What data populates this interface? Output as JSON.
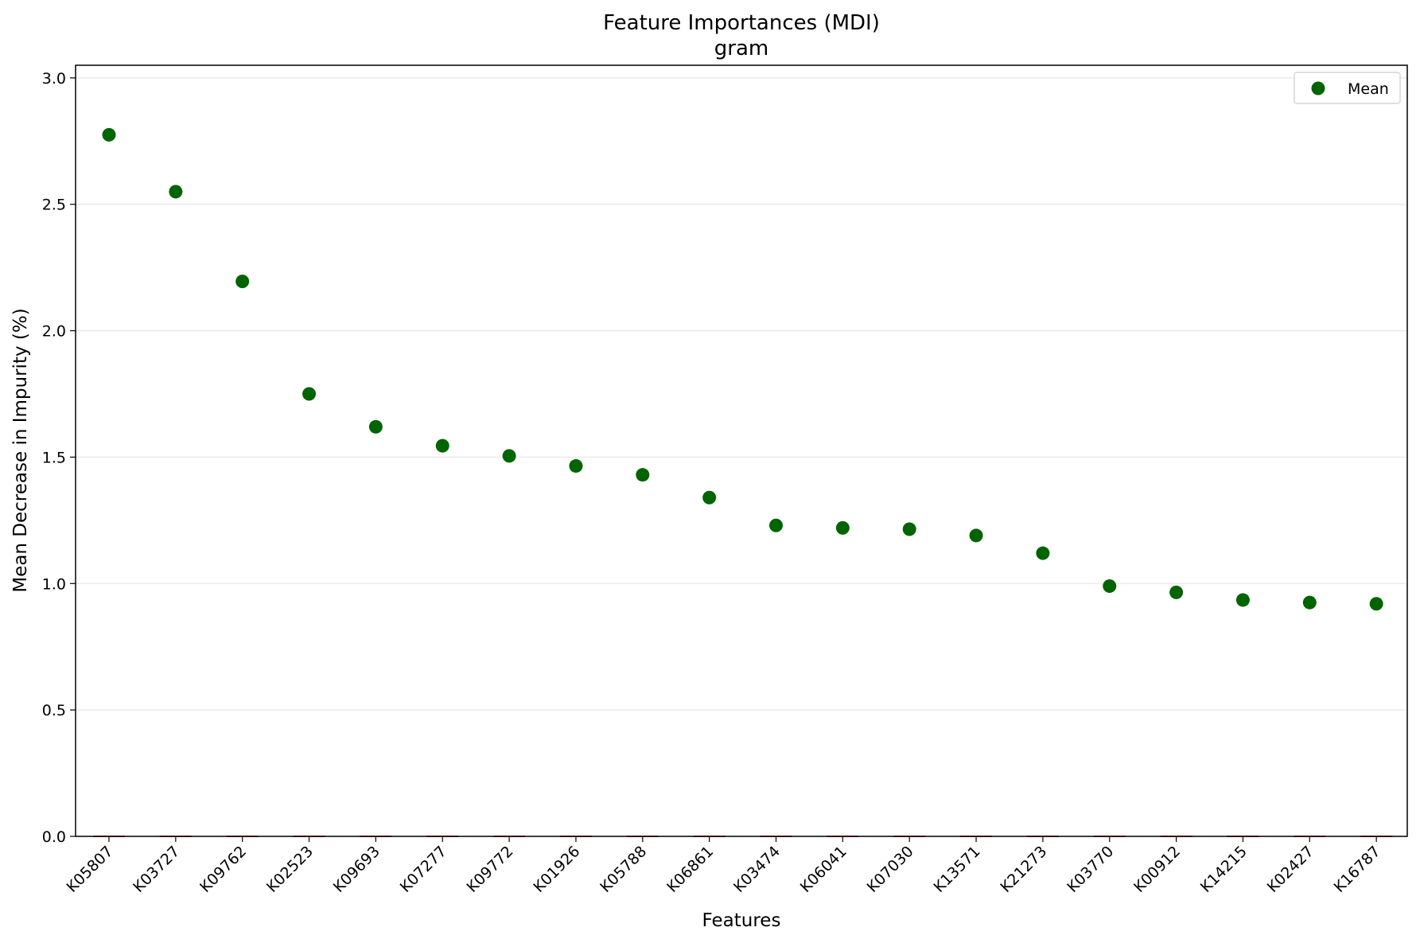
{
  "chart_data": {
    "type": "scatter",
    "title": "Feature Importances (MDI)",
    "subtitle": "gram",
    "xlabel": "Features",
    "ylabel": "Mean Decrease in Impurity (%)",
    "ylim": [
      0,
      3.05
    ],
    "yticks": [
      "0.0",
      "0.5",
      "1.0",
      "1.5",
      "2.0",
      "2.5",
      "3.0"
    ],
    "grid": "y",
    "legend_position": "top-right",
    "categories": [
      "K05807",
      "K03727",
      "K09762",
      "K02523",
      "K09693",
      "K07277",
      "K09772",
      "K01926",
      "K05788",
      "K06861",
      "K03474",
      "K06041",
      "K07030",
      "K13571",
      "K21273",
      "K03770",
      "K00912",
      "K14215",
      "K02427",
      "K16787"
    ],
    "series": [
      {
        "name": "Mean",
        "color": "#006400",
        "values": [
          2.775,
          2.55,
          2.195,
          1.75,
          1.62,
          1.545,
          1.505,
          1.465,
          1.43,
          1.34,
          1.23,
          1.22,
          1.215,
          1.19,
          1.12,
          0.99,
          0.965,
          0.935,
          0.925,
          0.92
        ]
      }
    ],
    "error_markers": {
      "color": "#d62728",
      "values": [
        0,
        0,
        0,
        0,
        0,
        0,
        0,
        0,
        0,
        0,
        0,
        0,
        0,
        0,
        0,
        0,
        0,
        0,
        0,
        0
      ]
    }
  }
}
